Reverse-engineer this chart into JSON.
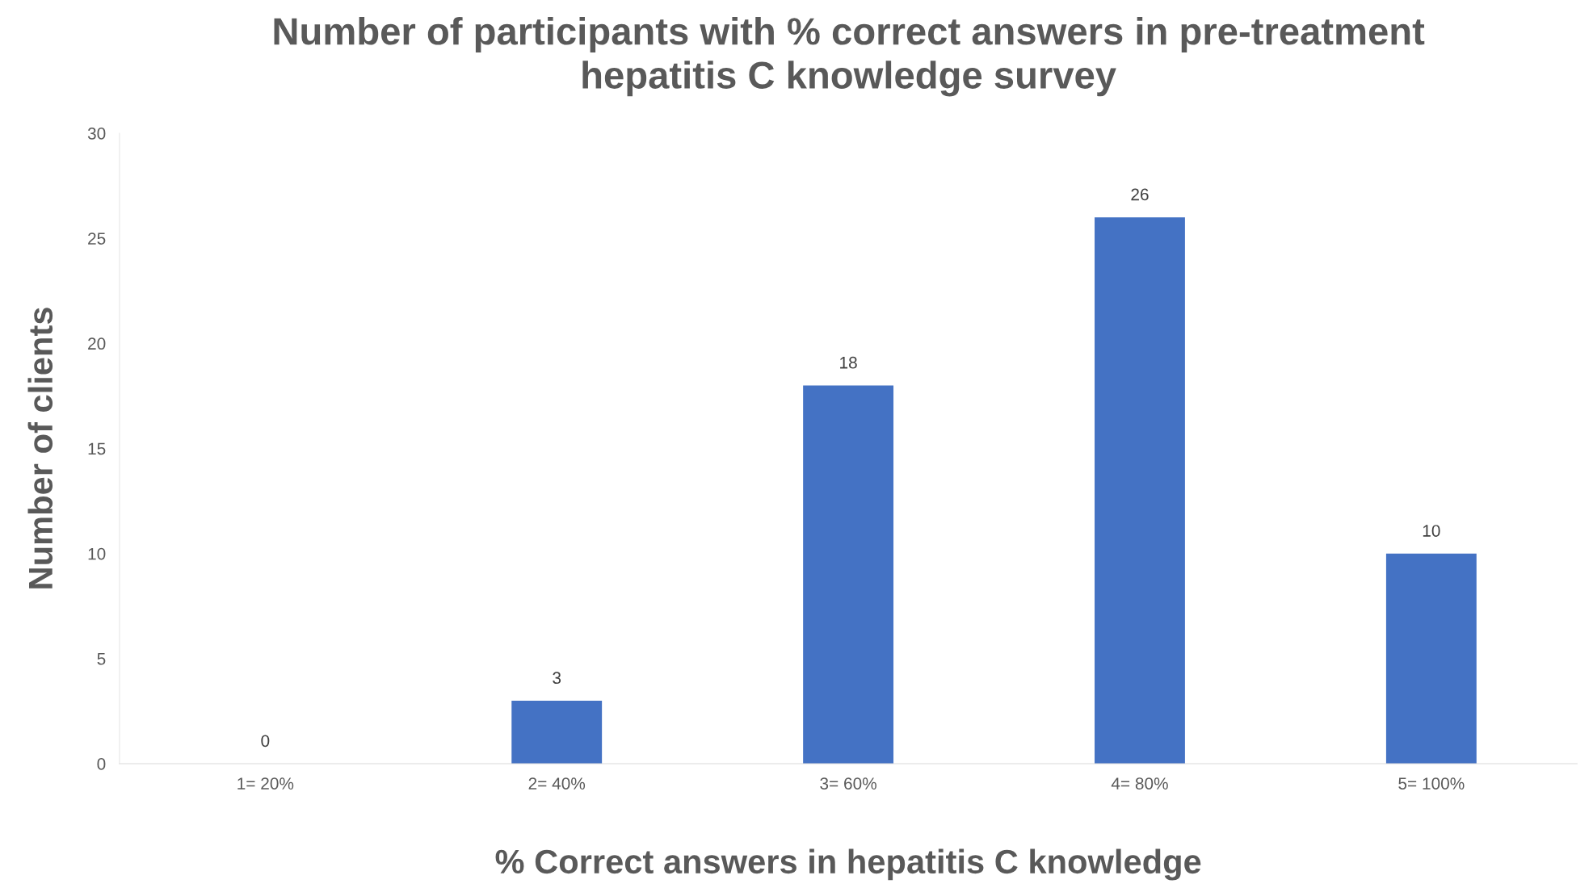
{
  "chart_data": {
    "type": "bar",
    "title": "Number of participants with % correct answers in pre-treatment\nhepatitis C knowledge survey",
    "xlabel": "% Correct answers in hepatitis C knowledge",
    "ylabel": "Number of clients",
    "categories": [
      "1= 20%",
      "2= 40%",
      "3= 60%",
      "4= 80%",
      "5= 100%"
    ],
    "values": [
      0,
      3,
      18,
      26,
      10
    ],
    "color": "#4472c4",
    "ylim": [
      0,
      30
    ],
    "yticks": [
      0,
      5,
      10,
      15,
      20,
      25,
      30
    ],
    "grid": false,
    "data_labels": true
  }
}
